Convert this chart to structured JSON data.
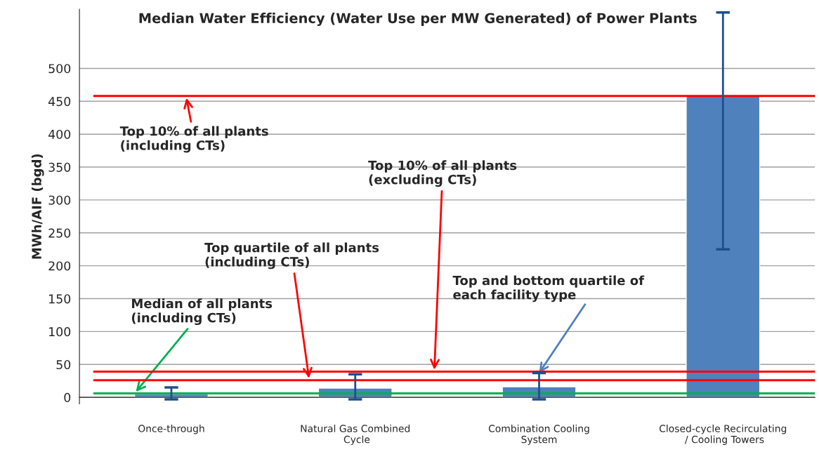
{
  "chart_data": {
    "type": "bar",
    "title": "Median Water Efficiency (Water Use per MW Generated) of Power Plants",
    "ylabel": "MWh/AIF (bgd)",
    "categories": [
      "Once-through",
      "Natural Gas Combined Cycle",
      "Combination Cooling System",
      "Closed-cycle Recirculating / Cooling Towers"
    ],
    "values": [
      5,
      14,
      16,
      458
    ],
    "color": "#4f81bd",
    "errors": [
      [
        -3,
        15
      ],
      [
        -3,
        35
      ],
      [
        -3,
        37
      ],
      [
        225,
        585
      ]
    ],
    "ylim": [
      -10,
      590
    ],
    "yticks": [
      0,
      50,
      100,
      150,
      200,
      250,
      300,
      350,
      400,
      450,
      500
    ],
    "grid": "y",
    "ref_lines": [
      {
        "axis": "y",
        "value": 458,
        "label": "Top 10% of all plants\n(including CTs)",
        "color": "#ff0000"
      },
      {
        "axis": "y",
        "value": 39,
        "label": "Top 10% of all plants\n(excluding CTs)",
        "color": "#ff0000"
      },
      {
        "axis": "y",
        "value": 26,
        "label": "Top quartile of all plants\n(including CTs)",
        "color": "#ff0000"
      },
      {
        "axis": "y",
        "value": 6,
        "label": "Median of all plants\n(including CTs)",
        "color": "#00b050"
      }
    ],
    "annotations": [
      {
        "text": "Top and bottom quartile of\neach facility type",
        "x": "Combination Cooling System",
        "y": 37
      }
    ]
  }
}
